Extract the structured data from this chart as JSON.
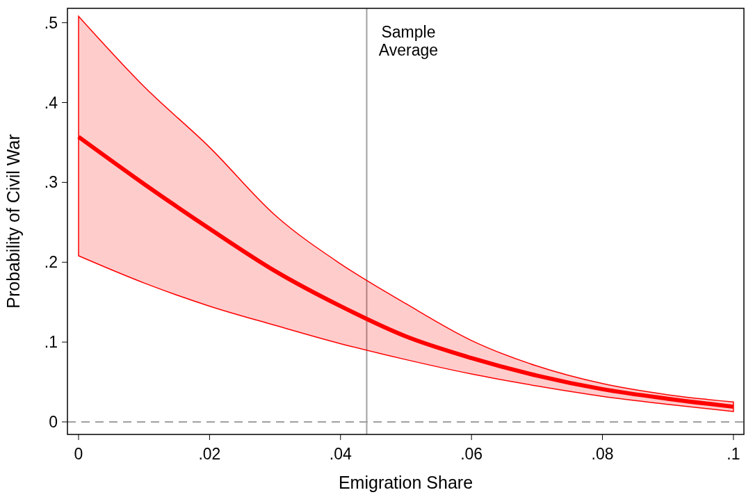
{
  "chart_data": {
    "type": "line",
    "xlabel": "Emigration Share",
    "ylabel": "Probability of Civil War",
    "x": [
      0,
      0.01,
      0.02,
      0.03,
      0.04,
      0.05,
      0.06,
      0.07,
      0.08,
      0.09,
      0.1
    ],
    "series": [
      {
        "color": "#ff0000",
        "values": [
          0.357,
          0.298,
          0.242,
          0.189,
          0.145,
          0.107,
          0.08,
          0.058,
          0.041,
          0.029,
          0.019
        ],
        "lower": [
          0.208,
          0.174,
          0.145,
          0.121,
          0.098,
          0.078,
          0.06,
          0.045,
          0.032,
          0.022,
          0.013
        ],
        "upper": [
          0.508,
          0.42,
          0.344,
          0.259,
          0.198,
          0.148,
          0.102,
          0.07,
          0.048,
          0.034,
          0.025
        ]
      }
    ],
    "xlim": [
      -0.0017,
      0.1016
    ],
    "ylim": [
      -0.0157,
      0.518
    ],
    "xticks": [
      {
        "value": 0,
        "label": "0"
      },
      {
        "value": 0.02,
        "label": ".02"
      },
      {
        "value": 0.04,
        "label": ".04"
      },
      {
        "value": 0.06,
        "label": ".06"
      },
      {
        "value": 0.08,
        "label": ".08"
      },
      {
        "value": 0.1,
        "label": ".1"
      }
    ],
    "yticks": [
      {
        "value": 0,
        "label": "0"
      },
      {
        "value": 0.1,
        "label": ".1"
      },
      {
        "value": 0.2,
        "label": ".2"
      },
      {
        "value": 0.3,
        "label": ".3"
      },
      {
        "value": 0.4,
        "label": ".4"
      },
      {
        "value": 0.5,
        "label": ".5"
      }
    ],
    "ref_lines": [
      {
        "axis": "x",
        "value": 0.044,
        "label": "Sample Average",
        "color": "#a0a0a0",
        "line_style": "solid"
      },
      {
        "axis": "y",
        "value": 0,
        "color": "#a0a0a0",
        "line_style": "dashed"
      }
    ],
    "grid": false,
    "marker": "none",
    "line_style": "solid"
  }
}
